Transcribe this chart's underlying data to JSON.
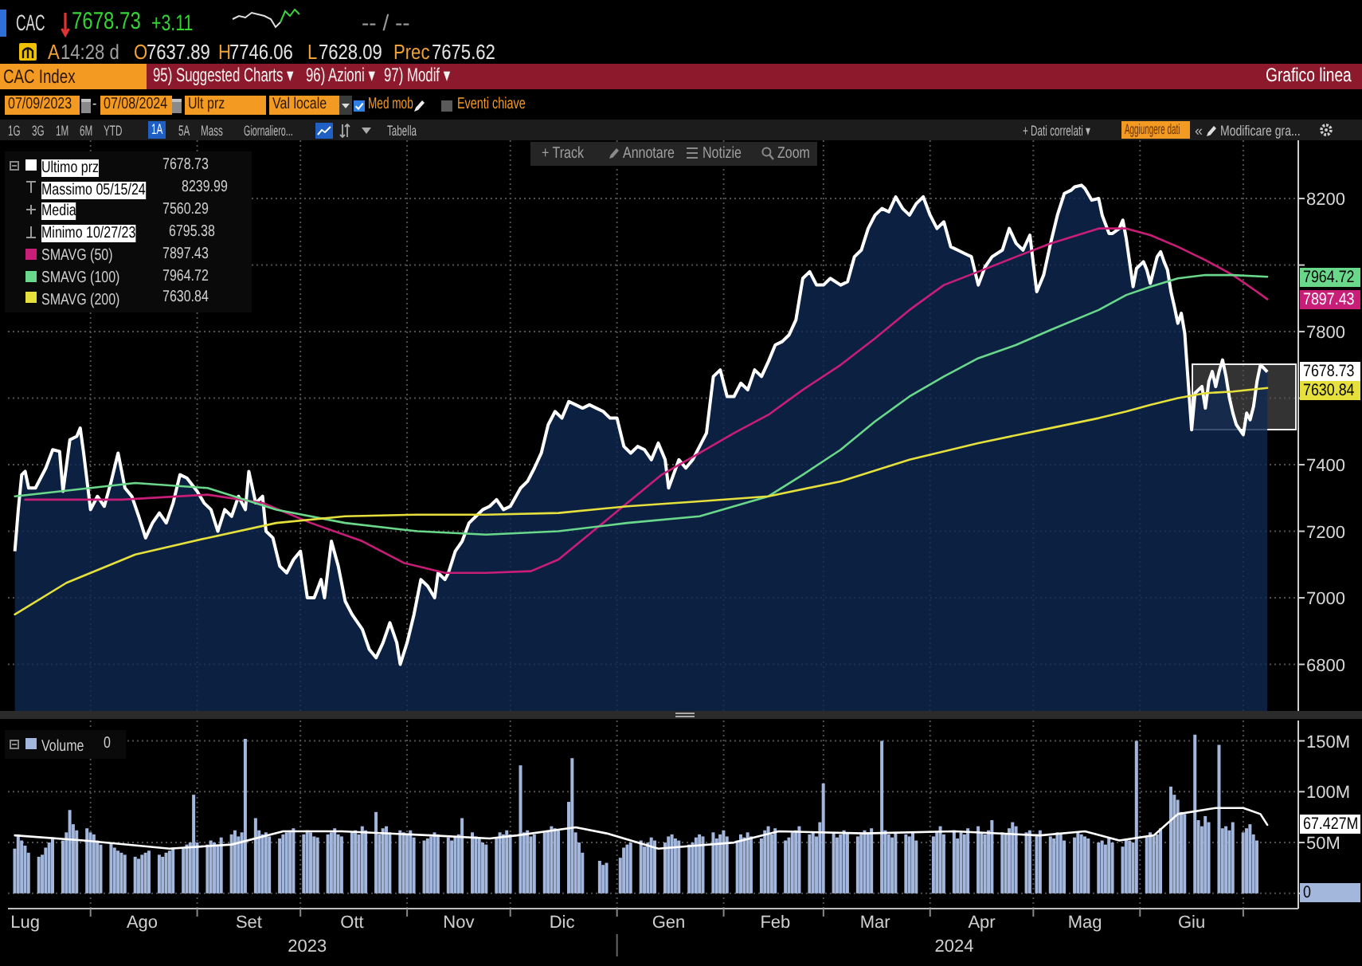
{
  "chart_data": [
    {
      "type": "line",
      "title": "CAC Index",
      "annotations": [
        "CAC",
        "7678.73",
        "+3.11",
        "-- / --",
        "A",
        "14:28 d",
        "O",
        "7637.89",
        "H",
        "7746.06",
        "L",
        "7628.09",
        "Prec",
        "7675.62",
        "95) Suggested Charts ▾",
        "96) Azioni ▾",
        "97) Modif ▾",
        "Grafico linea",
        "07/09/2023",
        "-",
        "07/08/2024",
        "Ult prz",
        "Val locale",
        "Med mob",
        "Eventi chiave",
        "1G",
        "3G",
        "1M",
        "6M",
        "YTD",
        "1A",
        "5A",
        "Mass",
        "Giornaliero...",
        "Tabella",
        "+ Dati correlati ▾",
        "Aggiungere dati",
        "«",
        "Modificare gra...",
        "+ Track",
        "Annotare",
        "Notizie",
        "Zoom",
        "Massimo 05/15/24",
        "8239.99",
        "Media",
        "7560.29",
        "Minimo 10/27/23",
        "6795.38",
        {
          "text": "7964.72",
          "x": "2024-07-08",
          "y": 7964.72
        },
        {
          "text": "7897.43",
          "x": "2024-07-08",
          "y": 7897.43
        },
        {
          "text": "7678.73",
          "x": "2024-07-08",
          "y": 7678.73
        },
        {
          "text": "7630.84",
          "x": "2024-07-08",
          "y": 7630.84
        }
      ],
      "series": [
        {
          "name": "Ultimo prz",
          "type": "area",
          "color": "#ffffff",
          "x": [
            "2023-07-10",
            "2023-07-11",
            "2023-07-12",
            "2023-07-13",
            "2023-07-14",
            "2023-07-16",
            "2023-07-19",
            "2023-07-21",
            "2023-07-23",
            "2023-07-24",
            "2023-07-26",
            "2023-07-28",
            "2023-07-29",
            "2023-07-30",
            "2023-08-01",
            "2023-08-03",
            "2023-08-05",
            "2023-08-07",
            "2023-08-09",
            "2023-08-11",
            "2023-08-13",
            "2023-08-15",
            "2023-08-17",
            "2023-08-19",
            "2023-08-21",
            "2023-08-23",
            "2023-08-25",
            "2023-08-27",
            "2023-08-29",
            "2023-09-01",
            "2023-09-03",
            "2023-09-05",
            "2023-09-07",
            "2023-09-09",
            "2023-09-11",
            "2023-09-13",
            "2023-09-15",
            "2023-09-16",
            "2023-09-18",
            "2023-09-20",
            "2023-09-21",
            "2023-09-23",
            "2023-09-25",
            "2023-09-27",
            "2023-09-29",
            "2023-10-01",
            "2023-10-03",
            "2023-10-05",
            "2023-10-07",
            "2023-10-08",
            "2023-10-10",
            "2023-10-12",
            "2023-10-14",
            "2023-10-16",
            "2023-10-19",
            "2023-10-21",
            "2023-10-23",
            "2023-10-25",
            "2023-10-27",
            "2023-10-29",
            "2023-10-30",
            "2023-11-01",
            "2023-11-03",
            "2023-11-05",
            "2023-11-07",
            "2023-11-09",
            "2023-11-10",
            "2023-11-12",
            "2023-11-13",
            "2023-11-15",
            "2023-11-17",
            "2023-11-19",
            "2023-11-21",
            "2023-11-23",
            "2023-11-25",
            "2023-11-27",
            "2023-11-29",
            "2023-12-01",
            "2023-12-04",
            "2023-12-06",
            "2023-12-08",
            "2023-12-10",
            "2023-12-12",
            "2023-12-14",
            "2023-12-16",
            "2023-12-18",
            "2023-12-20",
            "2023-12-22",
            "2023-12-24",
            "2023-12-26",
            "2023-12-28",
            "2023-12-30",
            "2024-01-01",
            "2024-01-03",
            "2024-01-05",
            "2024-01-07",
            "2024-01-09",
            "2024-01-11",
            "2024-01-13",
            "2024-01-15",
            "2024-01-16",
            "2024-01-19",
            "2024-01-21",
            "2024-01-23",
            "2024-01-25",
            "2024-01-27",
            "2024-01-29",
            "2024-01-31",
            "2024-02-02",
            "2024-02-04",
            "2024-02-06",
            "2024-02-08",
            "2024-02-10",
            "2024-02-12",
            "2024-02-14",
            "2024-02-16",
            "2024-02-18",
            "2024-02-20",
            "2024-02-22",
            "2024-02-24",
            "2024-02-26",
            "2024-02-28",
            "2024-03-01",
            "2024-03-03",
            "2024-03-06",
            "2024-03-08",
            "2024-03-10",
            "2024-03-12",
            "2024-03-14",
            "2024-03-16",
            "2024-03-18",
            "2024-03-20",
            "2024-03-22",
            "2024-03-24",
            "2024-03-26",
            "2024-03-28",
            "2024-03-30",
            "2024-04-01",
            "2024-04-03",
            "2024-04-05",
            "2024-04-07",
            "2024-04-09",
            "2024-04-11",
            "2024-04-13",
            "2024-04-15",
            "2024-04-17",
            "2024-04-19",
            "2024-04-22",
            "2024-04-24",
            "2024-04-26",
            "2024-04-28",
            "2024-04-30",
            "2024-05-02",
            "2024-05-04",
            "2024-05-06",
            "2024-05-08",
            "2024-05-10",
            "2024-05-12",
            "2024-05-13",
            "2024-05-15",
            "2024-05-16",
            "2024-05-18",
            "2024-05-20",
            "2024-05-21",
            "2024-05-23",
            "2024-05-24",
            "2024-05-26",
            "2024-05-27",
            "2024-05-28",
            "2024-05-30",
            "2024-05-31",
            "2024-06-02",
            "2024-06-03",
            "2024-06-04",
            "2024-06-06",
            "2024-06-07",
            "2024-06-08",
            "2024-06-09",
            "2024-06-10",
            "2024-06-11",
            "2024-06-12",
            "2024-06-13",
            "2024-06-14",
            "2024-06-16",
            "2024-06-17",
            "2024-06-19",
            "2024-06-20",
            "2024-06-21",
            "2024-06-22",
            "2024-06-23",
            "2024-06-24",
            "2024-06-25",
            "2024-06-26",
            "2024-06-27",
            "2024-06-28",
            "2024-06-29",
            "2024-07-01",
            "2024-07-02",
            "2024-07-03",
            "2024-07-04",
            "2024-07-05",
            "2024-07-06",
            "2024-07-07",
            "2024-07-08"
          ],
          "values": [
            7140,
            7265,
            7370,
            7380,
            7330,
            7330,
            7390,
            7445,
            7440,
            7320,
            7475,
            7485,
            7510,
            7435,
            7265,
            7305,
            7275,
            7350,
            7435,
            7330,
            7305,
            7245,
            7180,
            7225,
            7255,
            7225,
            7285,
            7370,
            7360,
            7320,
            7285,
            7265,
            7200,
            7265,
            7245,
            7305,
            7265,
            7380,
            7285,
            7305,
            7200,
            7180,
            7095,
            7075,
            7115,
            7140,
            7000,
            7000,
            7055,
            7000,
            7170,
            7095,
            6990,
            6950,
            6905,
            6845,
            6820,
            6865,
            6925,
            6865,
            6800,
            6865,
            6950,
            7055,
            7035,
            7000,
            7075,
            7055,
            7075,
            7140,
            7170,
            7225,
            7245,
            7265,
            7275,
            7295,
            7265,
            7275,
            7330,
            7350,
            7390,
            7435,
            7520,
            7560,
            7540,
            7590,
            7580,
            7570,
            7580,
            7570,
            7560,
            7540,
            7540,
            7455,
            7435,
            7455,
            7445,
            7415,
            7465,
            7415,
            7330,
            7415,
            7390,
            7415,
            7455,
            7495,
            7665,
            7685,
            7605,
            7605,
            7645,
            7625,
            7685,
            7665,
            7710,
            7760,
            7770,
            7790,
            7835,
            7960,
            7980,
            7940,
            7940,
            7960,
            7940,
            7950,
            8025,
            8045,
            8110,
            8150,
            8170,
            8160,
            8205,
            8170,
            8150,
            8185,
            8205,
            8150,
            8110,
            8130,
            8055,
            8045,
            8035,
            8025,
            7940,
            7995,
            8025,
            8045,
            8110,
            8065,
            8045,
            8090,
            7920,
            7970,
            8065,
            8150,
            8215,
            8225,
            8235,
            8240,
            8230,
            8195,
            8200,
            8150,
            8095,
            8095,
            8110,
            8135,
            8080,
            7935,
            7990,
            8010,
            7985,
            7945,
            8025,
            8040,
            8010,
            7985,
            7920,
            7875,
            7825,
            7855,
            7795,
            7505,
            7615,
            7635,
            7570,
            7650,
            7680,
            7635,
            7680,
            7715,
            7665,
            7600,
            7555,
            7520,
            7490,
            7555,
            7535,
            7575,
            7650,
            7700,
            7690,
            7678.73
          ]
        },
        {
          "name": "SMAVG (50)",
          "color": "#c81e78",
          "x": [
            "2023-07-13",
            "2023-08-10",
            "2023-09-04",
            "2023-09-20",
            "2023-10-04",
            "2023-10-19",
            "2023-10-31",
            "2023-11-12",
            "2023-11-24",
            "2023-12-07",
            "2023-12-15",
            "2023-12-25",
            "2024-01-04",
            "2024-01-14",
            "2024-01-25",
            "2024-02-04",
            "2024-02-14",
            "2024-02-24",
            "2024-03-06",
            "2024-03-16",
            "2024-03-26",
            "2024-04-05",
            "2024-04-15",
            "2024-04-26",
            "2024-05-06",
            "2024-05-20",
            "2024-05-28",
            "2024-06-04",
            "2024-06-12",
            "2024-06-20",
            "2024-06-28",
            "2024-07-05",
            "2024-07-08"
          ],
          "values": [
            7295,
            7295,
            7310,
            7285,
            7225,
            7170,
            7105,
            7075,
            7075,
            7080,
            7115,
            7200,
            7285,
            7370,
            7435,
            7495,
            7550,
            7625,
            7700,
            7780,
            7865,
            7940,
            7980,
            8025,
            8065,
            8110,
            8110,
            8090,
            8055,
            8015,
            7970,
            7920,
            7897.43
          ]
        },
        {
          "name": "SMAVG (100)",
          "color": "#6ad88a",
          "x": [
            "2023-07-10",
            "2023-08-14",
            "2023-09-04",
            "2023-09-24",
            "2023-10-14",
            "2023-11-04",
            "2023-11-24",
            "2023-12-15",
            "2024-01-04",
            "2024-01-25",
            "2024-02-04",
            "2024-02-14",
            "2024-02-24",
            "2024-03-06",
            "2024-03-16",
            "2024-03-26",
            "2024-04-05",
            "2024-04-15",
            "2024-04-26",
            "2024-05-06",
            "2024-05-20",
            "2024-05-28",
            "2024-06-04",
            "2024-06-12",
            "2024-06-20",
            "2024-06-28",
            "2024-07-08"
          ],
          "values": [
            7305,
            7345,
            7330,
            7265,
            7225,
            7200,
            7190,
            7200,
            7225,
            7245,
            7275,
            7305,
            7370,
            7445,
            7530,
            7605,
            7665,
            7720,
            7760,
            7805,
            7865,
            7910,
            7935,
            7960,
            7970,
            7970,
            7964.72
          ]
        },
        {
          "name": "SMAVG (200)",
          "color": "#e6e03c",
          "x": [
            "2023-07-10",
            "2023-07-25",
            "2023-08-14",
            "2023-09-04",
            "2023-09-24",
            "2023-10-14",
            "2023-11-04",
            "2023-11-24",
            "2023-12-15",
            "2024-01-04",
            "2024-01-25",
            "2024-02-14",
            "2024-03-06",
            "2024-03-26",
            "2024-04-15",
            "2024-05-06",
            "2024-05-20",
            "2024-05-28",
            "2024-06-04",
            "2024-06-12",
            "2024-06-20",
            "2024-06-28",
            "2024-07-08"
          ],
          "values": [
            6950,
            7045,
            7130,
            7180,
            7225,
            7245,
            7250,
            7250,
            7255,
            7275,
            7290,
            7305,
            7350,
            7415,
            7465,
            7510,
            7540,
            7560,
            7580,
            7600,
            7615,
            7620,
            7630.84
          ]
        }
      ],
      "xlim": [
        "2023-07-08",
        "2024-07-17"
      ],
      "xticks": [
        {
          "value": "2023-08-01",
          "label": null
        },
        {
          "value": "2023-09-01",
          "label": null
        },
        {
          "value": "2023-10-01",
          "label": null
        },
        {
          "value": "2023-11-01",
          "label": null
        },
        {
          "value": "2023-12-01",
          "label": null
        },
        {
          "value": "2024-01-01",
          "label": null
        },
        {
          "value": "2024-02-01",
          "label": null
        },
        {
          "value": "2024-03-01",
          "label": null
        },
        {
          "value": "2024-04-01",
          "label": null
        },
        {
          "value": "2024-05-01",
          "label": null
        },
        {
          "value": "2024-06-01",
          "label": null
        },
        {
          "value": "2024-07-01",
          "label": null
        }
      ],
      "ylim": [
        6660,
        8375
      ],
      "yticks": [
        6800,
        7000,
        7200,
        7400,
        {
          "value": 7600,
          "label": null
        },
        7800,
        {
          "value": 8000,
          "label": null
        },
        8200
      ],
      "tick_labels": "y",
      "grid": true,
      "legend": "top left"
    },
    {
      "type": "bar",
      "annotations": [
        {
          "text": "67.427M",
          "x": "2024-07-08",
          "y": 67.427
        },
        {
          "text": "0",
          "x": "2024-07-08",
          "y": 0
        }
      ],
      "series": [
        {
          "name": "Volume",
          "color": "#a3b6dc",
          "x": [
            "2023-07-10",
            "2023-07-11",
            "2023-07-12",
            "2023-07-13",
            "2023-07-14",
            "2023-07-17",
            "2023-07-18",
            "2023-07-19",
            "2023-07-20",
            "2023-07-21",
            "2023-07-24",
            "2023-07-25",
            "2023-07-26",
            "2023-07-27",
            "2023-07-28",
            "2023-07-31",
            "2023-08-01",
            "2023-08-02",
            "2023-08-03",
            "2023-08-04",
            "2023-08-07",
            "2023-08-08",
            "2023-08-09",
            "2023-08-10",
            "2023-08-11",
            "2023-08-14",
            "2023-08-15",
            "2023-08-16",
            "2023-08-17",
            "2023-08-18",
            "2023-08-21",
            "2023-08-22",
            "2023-08-23",
            "2023-08-24",
            "2023-08-25",
            "2023-08-28",
            "2023-08-29",
            "2023-08-30",
            "2023-08-31",
            "2023-09-01",
            "2023-09-04",
            "2023-09-05",
            "2023-09-06",
            "2023-09-07",
            "2023-09-08",
            "2023-09-11",
            "2023-09-12",
            "2023-09-13",
            "2023-09-14",
            "2023-09-15",
            "2023-09-18",
            "2023-09-19",
            "2023-09-20",
            "2023-09-21",
            "2023-09-22",
            "2023-09-25",
            "2023-09-26",
            "2023-09-27",
            "2023-09-28",
            "2023-09-29",
            "2023-10-02",
            "2023-10-03",
            "2023-10-04",
            "2023-10-05",
            "2023-10-06",
            "2023-10-09",
            "2023-10-10",
            "2023-10-11",
            "2023-10-12",
            "2023-10-13",
            "2023-10-16",
            "2023-10-17",
            "2023-10-18",
            "2023-10-19",
            "2023-10-20",
            "2023-10-23",
            "2023-10-24",
            "2023-10-25",
            "2023-10-26",
            "2023-10-27",
            "2023-10-30",
            "2023-10-31",
            "2023-11-01",
            "2023-11-02",
            "2023-11-03",
            "2023-11-06",
            "2023-11-07",
            "2023-11-08",
            "2023-11-09",
            "2023-11-10",
            "2023-11-13",
            "2023-11-14",
            "2023-11-15",
            "2023-11-16",
            "2023-11-17",
            "2023-11-20",
            "2023-11-21",
            "2023-11-22",
            "2023-11-23",
            "2023-11-24",
            "2023-11-27",
            "2023-11-28",
            "2023-11-29",
            "2023-11-30",
            "2023-12-01",
            "2023-12-04",
            "2023-12-05",
            "2023-12-06",
            "2023-12-07",
            "2023-12-08",
            "2023-12-11",
            "2023-12-12",
            "2023-12-13",
            "2023-12-14",
            "2023-12-15",
            "2023-12-18",
            "2023-12-19",
            "2023-12-20",
            "2023-12-21",
            "2023-12-22",
            "2023-12-27",
            "2023-12-28",
            "2023-12-29",
            "2024-01-02",
            "2024-01-03",
            "2024-01-04",
            "2024-01-05",
            "2024-01-08",
            "2024-01-09",
            "2024-01-10",
            "2024-01-11",
            "2024-01-12",
            "2024-01-15",
            "2024-01-16",
            "2024-01-17",
            "2024-01-18",
            "2024-01-19",
            "2024-01-22",
            "2024-01-23",
            "2024-01-24",
            "2024-01-25",
            "2024-01-26",
            "2024-01-29",
            "2024-01-30",
            "2024-01-31",
            "2024-02-01",
            "2024-02-02",
            "2024-02-05",
            "2024-02-06",
            "2024-02-07",
            "2024-02-08",
            "2024-02-09",
            "2024-02-12",
            "2024-02-13",
            "2024-02-14",
            "2024-02-15",
            "2024-02-16",
            "2024-02-19",
            "2024-02-20",
            "2024-02-21",
            "2024-02-22",
            "2024-02-23",
            "2024-02-26",
            "2024-02-27",
            "2024-02-28",
            "2024-02-29",
            "2024-03-01",
            "2024-03-04",
            "2024-03-05",
            "2024-03-06",
            "2024-03-07",
            "2024-03-08",
            "2024-03-11",
            "2024-03-12",
            "2024-03-13",
            "2024-03-14",
            "2024-03-15",
            "2024-03-18",
            "2024-03-19",
            "2024-03-20",
            "2024-03-21",
            "2024-03-22",
            "2024-03-25",
            "2024-03-26",
            "2024-03-27",
            "2024-03-28",
            "2024-04-02",
            "2024-04-03",
            "2024-04-04",
            "2024-04-05",
            "2024-04-08",
            "2024-04-09",
            "2024-04-10",
            "2024-04-11",
            "2024-04-12",
            "2024-04-15",
            "2024-04-16",
            "2024-04-17",
            "2024-04-18",
            "2024-04-19",
            "2024-04-22",
            "2024-04-23",
            "2024-04-24",
            "2024-04-25",
            "2024-04-26",
            "2024-04-29",
            "2024-04-30",
            "2024-05-02",
            "2024-05-03",
            "2024-05-06",
            "2024-05-07",
            "2024-05-08",
            "2024-05-09",
            "2024-05-10",
            "2024-05-13",
            "2024-05-14",
            "2024-05-15",
            "2024-05-16",
            "2024-05-17",
            "2024-05-20",
            "2024-05-21",
            "2024-05-22",
            "2024-05-23",
            "2024-05-24",
            "2024-05-27",
            "2024-05-28",
            "2024-05-29",
            "2024-05-30",
            "2024-05-31",
            "2024-06-03",
            "2024-06-04",
            "2024-06-05",
            "2024-06-06",
            "2024-06-07",
            "2024-06-10",
            "2024-06-11",
            "2024-06-12",
            "2024-06-13",
            "2024-06-14",
            "2024-06-17",
            "2024-06-18",
            "2024-06-19",
            "2024-06-20",
            "2024-06-21",
            "2024-06-24",
            "2024-06-25",
            "2024-06-26",
            "2024-06-27",
            "2024-06-28",
            "2024-07-01",
            "2024-07-02",
            "2024-07-03",
            "2024-07-04",
            "2024-07-05",
            "2024-07-08"
          ],
          "values": [
            44,
            58,
            52,
            47,
            40,
            36,
            38,
            45,
            50,
            55,
            52,
            60,
            82,
            68,
            62,
            64,
            60,
            58,
            52,
            48,
            50,
            45,
            42,
            40,
            38,
            36,
            34,
            38,
            40,
            42,
            38,
            36,
            40,
            42,
            45,
            44,
            48,
            50,
            97,
            50,
            48,
            52,
            50,
            48,
            55,
            58,
            62,
            56,
            60,
            152,
            74,
            62,
            58,
            60,
            56,
            54,
            58,
            60,
            62,
            64,
            58,
            62,
            60,
            56,
            55,
            58,
            60,
            64,
            58,
            56,
            60,
            62,
            58,
            66,
            62,
            80,
            58,
            64,
            66,
            60,
            62,
            60,
            58,
            62,
            55,
            52,
            54,
            56,
            60,
            58,
            55,
            52,
            56,
            58,
            74,
            60,
            56,
            54,
            50,
            48,
            55,
            60,
            58,
            62,
            58,
            126,
            60,
            62,
            56,
            58,
            60,
            62,
            66,
            64,
            62,
            90,
            133,
            60,
            50,
            40,
            32,
            28,
            30,
            35,
            45,
            48,
            50,
            52,
            46,
            50,
            55,
            52,
            50,
            56,
            58,
            54,
            52,
            48,
            50,
            55,
            58,
            56,
            60,
            54,
            58,
            62,
            56,
            52,
            58,
            55,
            60,
            56,
            54,
            62,
            66,
            58,
            64,
            52,
            55,
            60,
            62,
            66,
            58,
            60,
            56,
            70,
            108,
            60,
            55,
            58,
            62,
            60,
            56,
            58,
            62,
            60,
            64,
            150,
            62,
            58,
            55,
            60,
            58,
            56,
            60,
            52,
            56,
            60,
            66,
            58,
            62,
            54,
            60,
            58,
            64,
            66,
            60,
            58,
            62,
            72,
            60,
            58,
            64,
            70,
            66,
            60,
            62,
            58,
            62,
            56,
            54,
            60,
            58,
            52,
            55,
            60,
            58,
            56,
            54,
            50,
            52,
            48,
            55,
            50,
            46,
            54,
            52,
            50,
            150,
            55,
            60,
            56,
            58,
            64,
            105,
            97,
            92,
            80,
            78,
            156,
            72,
            66,
            76,
            70,
            146,
            64,
            66,
            62,
            70,
            60,
            64,
            68,
            58,
            52,
            0
          ]
        },
        {
          "type": "line",
          "color": "#ffffff",
          "x": [
            "2023-07-10",
            "2023-07-30",
            "2023-08-24",
            "2023-09-11",
            "2023-09-26",
            "2023-10-13",
            "2023-11-08",
            "2023-11-25",
            "2023-12-03",
            "2023-12-20",
            "2023-12-29",
            "2024-01-13",
            "2024-02-04",
            "2024-02-17",
            "2024-03-13",
            "2024-04-08",
            "2024-05-03",
            "2024-05-16",
            "2024-05-26",
            "2024-06-05",
            "2024-06-12",
            "2024-06-23",
            "2024-07-01",
            "2024-07-06",
            "2024-07-08"
          ],
          "values": [
            57,
            52,
            44,
            48,
            61,
            61,
            57,
            54,
            57,
            65,
            59,
            44,
            50,
            61,
            59,
            61,
            57,
            61,
            52,
            57,
            78,
            84,
            84,
            78,
            67.427
          ]
        }
      ],
      "xlim": [
        "2023-07-08",
        "2024-07-17"
      ],
      "xticks": [
        {
          "value": "2023-07-13",
          "label": "Lug"
        },
        {
          "value": "2023-08-01",
          "label": null
        },
        {
          "value": "2023-08-16",
          "label": "Ago"
        },
        {
          "value": "2023-09-01",
          "label": null
        },
        {
          "value": "2023-09-16",
          "label": "Set"
        },
        {
          "value": "2023-10-01",
          "label": null
        },
        {
          "value": "2023-10-16",
          "label": "Ott"
        },
        {
          "value": "2023-11-01",
          "label": null
        },
        {
          "value": "2023-11-16",
          "label": "Nov"
        },
        {
          "value": "2023-12-01",
          "label": null
        },
        {
          "value": "2023-12-16",
          "label": "Dic"
        },
        {
          "value": "2024-01-01",
          "label": null
        },
        {
          "value": "2024-01-16",
          "label": "Gen"
        },
        {
          "value": "2024-02-01",
          "label": null
        },
        {
          "value": "2024-02-16",
          "label": "Feb"
        },
        {
          "value": "2024-03-01",
          "label": null
        },
        {
          "value": "2024-03-16",
          "label": "Mar"
        },
        {
          "value": "2024-04-01",
          "label": null
        },
        {
          "value": "2024-04-16",
          "label": "Apr"
        },
        {
          "value": "2024-05-01",
          "label": null
        },
        {
          "value": "2024-05-16",
          "label": "Mag"
        },
        {
          "value": "2024-06-01",
          "label": null
        },
        {
          "value": "2024-06-16",
          "label": "Giu"
        },
        {
          "value": "2024-07-01",
          "label": null
        }
      ],
      "x2lim": [
        "2023-07-08",
        "2024-07-17"
      ],
      "x2ticks": [
        {
          "value": "2023-10-03",
          "label": "2023"
        },
        {
          "value": "2024-01-01",
          "label": null
        },
        {
          "value": "2024-04-08",
          "label": "2024"
        }
      ],
      "ylim": [
        -15,
        170
      ],
      "yticks": [
        {
          "value": 0,
          "label": null
        },
        {
          "value": 50,
          "label": "50M"
        },
        {
          "value": 100,
          "label": "100M"
        },
        {
          "value": 150,
          "label": "150M"
        }
      ],
      "grid": true,
      "legend": "top left"
    }
  ]
}
